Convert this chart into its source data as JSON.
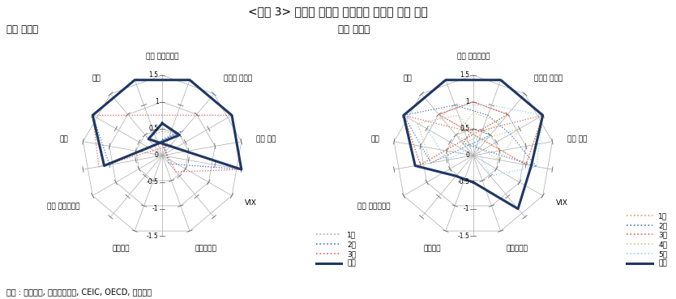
{
  "title": "<그림 3> 시기별 외국인 주식자금 유출입 요소 비교",
  "subtitle_left": "과잉 유출기",
  "subtitle_right": "과잉 유입기",
  "source": "자료 : 블룸버그, 데이터스트림, CEIC, OECD, 한국은행",
  "categories": [
    "세계 경제성장률",
    "글로벌 유동성",
    "미국 국채",
    "VIX",
    "외환보유고",
    "신용등급",
    "한국 경제성장률",
    "주가",
    "환율"
  ],
  "r_max": 1.5,
  "tick_vals": [
    1.5,
    1.0,
    0.5,
    0,
    -0.5,
    -1.0,
    -1.5
  ],
  "chart1": {
    "1차": [
      0.45,
      0.5,
      -1.1,
      -1.5,
      -1.5,
      -1.5,
      -1.5,
      -1.5,
      0.45
    ],
    "2차": [
      0.3,
      0.6,
      -1.0,
      -1.5,
      -1.5,
      -1.5,
      -1.5,
      -1.5,
      -0.2
    ],
    "3차": [
      0.2,
      0.25,
      -1.2,
      -1.5,
      -0.8,
      -0.8,
      -1.5,
      -1.5,
      -0.4
    ],
    "현재": [
      0.6,
      0.5,
      -1.1,
      -1.5,
      -1.5,
      -1.5,
      -1.5,
      -1.5,
      0.4
    ]
  },
  "chart2": {
    "1차": [
      1.0,
      1.0,
      -1.0,
      -1.5,
      -1.5,
      -1.5,
      -1.5,
      -1.0,
      1.0
    ],
    "2차": [
      0.5,
      0.5,
      -0.8,
      -1.5,
      -1.0,
      -0.8,
      -0.8,
      -1.2,
      0.3
    ],
    "3차": [
      1.0,
      1.0,
      -1.0,
      -1.5,
      -0.5,
      -0.5,
      -1.5,
      -1.0,
      1.0
    ],
    "4차": [
      0.8,
      0.8,
      -0.8,
      -1.2,
      -0.8,
      -0.3,
      -1.0,
      -0.5,
      0.5
    ],
    "5차": [
      0.3,
      0.4,
      -0.5,
      -1.0,
      -1.0,
      -1.0,
      -1.5,
      -1.2,
      -0.5
    ],
    "현재": [
      -0.5,
      -0.5,
      -1.1,
      -1.5,
      -1.5,
      -1.5,
      -1.5,
      -1.1,
      -1.3
    ]
  },
  "colors1": {
    "1차": "#AAAAAA",
    "2차": "#4472C4",
    "3차": "#E06060",
    "현재": "#1F3864"
  },
  "colors2": {
    "1차": "#ED9B4F",
    "2차": "#4472C4",
    "3차": "#E06060",
    "4차": "#BBCC88",
    "5차": "#99CCEE",
    "현재": "#1F3864"
  },
  "order1": [
    "1차",
    "2차",
    "3차",
    "현재"
  ],
  "order2": [
    "1차",
    "2차",
    "3차",
    "4차",
    "5차",
    "현재"
  ],
  "lw1": {
    "1차": 0.9,
    "2차": 0.9,
    "3차": 0.9,
    "현재": 2.2
  },
  "lw2": {
    "1차": 0.9,
    "2차": 0.9,
    "3차": 0.9,
    "4차": 0.9,
    "5차": 0.9,
    "현재": 2.2
  },
  "ls1": {
    "1차": "dotted",
    "2차": "dotted",
    "3차": "dotted",
    "현재": "solid"
  },
  "ls2": {
    "1차": "dotted",
    "2차": "dotted",
    "3차": "dotted",
    "4차": "dotted",
    "5차": "dotted",
    "현재": "solid"
  }
}
